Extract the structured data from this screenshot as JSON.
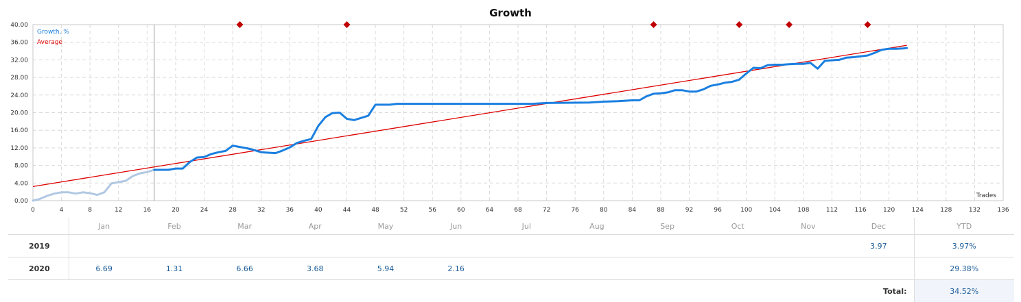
{
  "chart_data": {
    "type": "line",
    "title": "Growth",
    "xlabel": "Trades",
    "ylabel": "",
    "xlim": [
      0,
      136
    ],
    "ylim": [
      0,
      40
    ],
    "xticks": [
      "0",
      "4",
      "8",
      "12",
      "16",
      "20",
      "24",
      "28",
      "32",
      "36",
      "40",
      "44",
      "48",
      "52",
      "56",
      "60",
      "64",
      "68",
      "72",
      "76",
      "80",
      "84",
      "88",
      "92",
      "96",
      "100",
      "104",
      "108",
      "112",
      "116",
      "120",
      "124",
      "128",
      "132",
      "136"
    ],
    "yticks": [
      "0.00",
      "4.00",
      "8.00",
      "12.00",
      "16.00",
      "20.00",
      "24.00",
      "28.00",
      "32.00",
      "36.00",
      "40.00"
    ],
    "month_labels": [
      {
        "label": "Jan",
        "x": 10
      },
      {
        "label": "Feb",
        "x": 20
      },
      {
        "label": "Mar",
        "x": 29.5
      },
      {
        "label": "Apr",
        "x": 39.5
      },
      {
        "label": "May",
        "x": 49.5
      },
      {
        "label": "Jun",
        "x": 59.5
      },
      {
        "label": "Jul",
        "x": 69.5
      },
      {
        "label": "Aug",
        "x": 79.5
      },
      {
        "label": "Sep",
        "x": 89.5
      },
      {
        "label": "Oct",
        "x": 99.5
      },
      {
        "label": "Nov",
        "x": 109.5
      },
      {
        "label": "Dec",
        "x": 119.5
      }
    ],
    "legend": [
      {
        "name": "Growth, %",
        "color": "#1a7fe0"
      },
      {
        "name": "Average",
        "color": "#dd0000"
      }
    ],
    "legend_position": "top-left",
    "grid": true,
    "history_end_x": 17,
    "markers_x": [
      29,
      44,
      87,
      99,
      106,
      117
    ],
    "series": [
      {
        "name": "Growth, %",
        "color": "#1a7fe0",
        "history_color": "#b0c8e2",
        "points": [
          [
            0,
            0
          ],
          [
            1,
            0.4
          ],
          [
            2,
            1.1
          ],
          [
            3,
            1.6
          ],
          [
            4,
            1.9
          ],
          [
            5,
            1.9
          ],
          [
            6,
            1.6
          ],
          [
            7,
            1.9
          ],
          [
            8,
            1.7
          ],
          [
            9,
            1.3
          ],
          [
            10,
            1.9
          ],
          [
            11,
            3.9
          ],
          [
            12,
            4.2
          ],
          [
            13,
            4.5
          ],
          [
            14,
            5.6
          ],
          [
            15,
            6.2
          ],
          [
            16,
            6.5
          ],
          [
            17,
            7.0
          ],
          [
            18,
            7.0
          ],
          [
            19,
            7.0
          ],
          [
            20,
            7.3
          ],
          [
            21,
            7.3
          ],
          [
            22,
            8.8
          ],
          [
            23,
            9.8
          ],
          [
            24,
            9.9
          ],
          [
            25,
            10.6
          ],
          [
            26,
            11.0
          ],
          [
            27,
            11.3
          ],
          [
            28,
            12.5
          ],
          [
            29,
            12.2
          ],
          [
            30,
            11.9
          ],
          [
            31,
            11.5
          ],
          [
            32,
            11.0
          ],
          [
            33,
            10.9
          ],
          [
            34,
            10.8
          ],
          [
            35,
            11.4
          ],
          [
            36,
            12.1
          ],
          [
            37,
            13.1
          ],
          [
            38,
            13.6
          ],
          [
            39,
            14.0
          ],
          [
            40,
            17.0
          ],
          [
            41,
            19.0
          ],
          [
            42,
            19.9
          ],
          [
            43,
            20.0
          ],
          [
            44,
            18.6
          ],
          [
            45,
            18.3
          ],
          [
            46,
            18.8
          ],
          [
            47,
            19.3
          ],
          [
            48,
            21.8
          ],
          [
            49,
            21.8
          ],
          [
            50,
            21.8
          ],
          [
            51,
            22.0
          ],
          [
            52,
            22.0
          ],
          [
            60,
            22.0
          ],
          [
            70,
            22.0
          ],
          [
            72,
            22.2
          ],
          [
            78,
            22.3
          ],
          [
            80,
            22.5
          ],
          [
            82,
            22.6
          ],
          [
            84,
            22.8
          ],
          [
            85,
            22.8
          ],
          [
            86,
            23.7
          ],
          [
            87,
            24.3
          ],
          [
            88,
            24.4
          ],
          [
            89,
            24.6
          ],
          [
            90,
            25.1
          ],
          [
            91,
            25.1
          ],
          [
            92,
            24.8
          ],
          [
            93,
            24.8
          ],
          [
            94,
            25.3
          ],
          [
            95,
            26.1
          ],
          [
            96,
            26.4
          ],
          [
            97,
            26.8
          ],
          [
            98,
            27.0
          ],
          [
            99,
            27.5
          ],
          [
            100,
            28.9
          ],
          [
            101,
            30.2
          ],
          [
            102,
            30.1
          ],
          [
            103,
            30.8
          ],
          [
            104,
            30.9
          ],
          [
            105,
            30.9
          ],
          [
            106,
            31.0
          ],
          [
            107,
            31.1
          ],
          [
            108,
            31.1
          ],
          [
            109,
            31.3
          ],
          [
            110,
            30.0
          ],
          [
            111,
            31.8
          ],
          [
            112,
            31.9
          ],
          [
            113,
            32.0
          ],
          [
            114,
            32.5
          ],
          [
            115,
            32.6
          ],
          [
            116,
            32.8
          ],
          [
            117,
            33.0
          ],
          [
            118,
            33.6
          ],
          [
            119,
            34.3
          ],
          [
            120,
            34.5
          ],
          [
            121,
            34.5
          ],
          [
            122,
            34.6
          ],
          [
            122.5,
            34.7
          ]
        ]
      },
      {
        "name": "Average",
        "color": "#dd0000",
        "points": [
          [
            0,
            3.2
          ],
          [
            122.5,
            35.3
          ]
        ]
      }
    ]
  },
  "table": {
    "months": [
      "Jan",
      "Feb",
      "Mar",
      "Apr",
      "May",
      "Jun",
      "Jul",
      "Aug",
      "Sep",
      "Oct",
      "Nov",
      "Dec"
    ],
    "ytd_label": "YTD",
    "rows": [
      {
        "year": "2019",
        "values": [
          "",
          "",
          "",
          "",
          "",
          "",
          "",
          "",
          "",
          "",
          "",
          "3.97"
        ],
        "ytd": "3.97%"
      },
      {
        "year": "2020",
        "values": [
          "6.69",
          "1.31",
          "6.66",
          "3.68",
          "5.94",
          "2.16",
          "",
          "",
          "",
          "",
          "",
          ""
        ],
        "ytd": "29.38%"
      }
    ],
    "total_label": "Total:",
    "total_value": "34.52%"
  }
}
